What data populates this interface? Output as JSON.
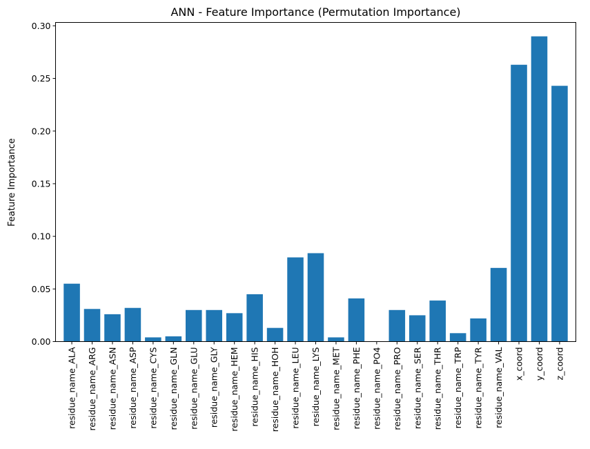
{
  "chart_data": {
    "type": "bar",
    "title": "ANN - Feature Importance (Permutation Importance)",
    "xlabel": "",
    "ylabel": "Feature Importance",
    "ylim": [
      0,
      0.3
    ],
    "yticks": [
      "0.00",
      "0.05",
      "0.10",
      "0.15",
      "0.20",
      "0.25",
      "0.30"
    ],
    "grid": false,
    "bar_color": "#1f77b4",
    "categories": [
      "residue_name_ALA",
      "residue_name_ARG",
      "residue_name_ASN",
      "residue_name_ASP",
      "residue_name_CYS",
      "residue_name_GLN",
      "residue_name_GLU",
      "residue_name_GLY",
      "residue_name_HEM",
      "residue_name_HIS",
      "residue_name_HOH",
      "residue_name_LEU",
      "residue_name_LYS",
      "residue_name_MET",
      "residue_name_PHE",
      "residue_name_PO4",
      "residue_name_PRO",
      "residue_name_SER",
      "residue_name_THR",
      "residue_name_TRP",
      "residue_name_TYR",
      "residue_name_VAL",
      "x_coord",
      "y_coord",
      "z_coord"
    ],
    "values": [
      0.055,
      0.031,
      0.026,
      0.032,
      0.004,
      0.005,
      0.03,
      0.03,
      0.027,
      0.045,
      0.013,
      0.08,
      0.084,
      0.004,
      0.041,
      0.0,
      0.03,
      0.025,
      0.039,
      0.008,
      0.022,
      0.07,
      0.263,
      0.29,
      0.243
    ]
  }
}
